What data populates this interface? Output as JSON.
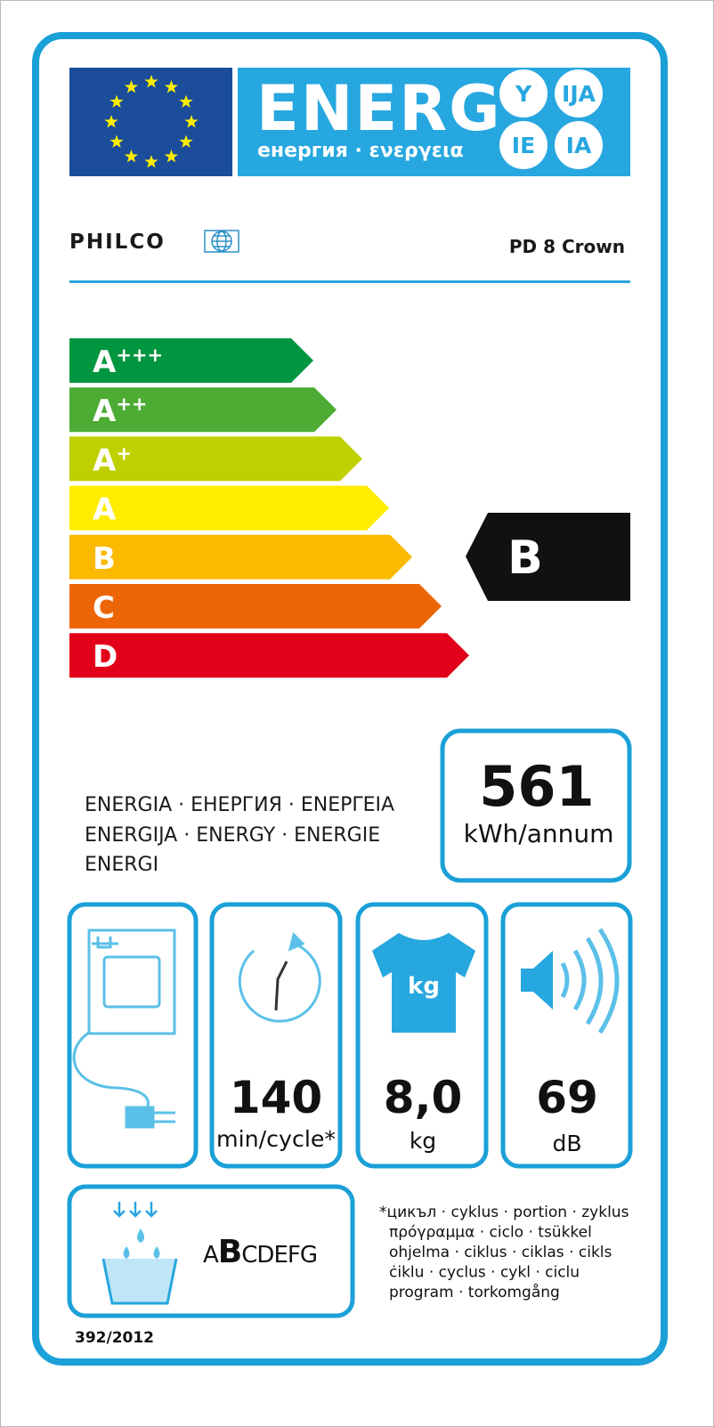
{
  "header": {
    "title": "ENERG",
    "subtitle": "енергия · ενεργεια",
    "suffixes": [
      "Y",
      "IJA",
      "IE",
      "IA"
    ]
  },
  "supplier": "PHILCO",
  "model": "PD 8 Crown",
  "classes": [
    {
      "letter": "A",
      "sup": "+++",
      "color": "#00963f"
    },
    {
      "letter": "A",
      "sup": "++",
      "color": "#4cac33"
    },
    {
      "letter": "A",
      "sup": "+",
      "color": "#bfd000"
    },
    {
      "letter": "A",
      "color": "#ffed00"
    },
    {
      "letter": "B",
      "color": "#fbb900"
    },
    {
      "letter": "C",
      "color": "#ec6608"
    },
    {
      "letter": "D",
      "color": "#e2001a"
    }
  ],
  "rating": "B",
  "energy": {
    "languages": [
      "ENERGIA · ЕНЕРГИЯ · ΕΝΕΡΓΕΙΑ",
      "ENERGIJA · ENERGY · ENERGIE",
      "ENERGI"
    ],
    "value": "561",
    "unit": "kWh/annum"
  },
  "icons": {
    "kg_symbol": "kg",
    "time": {
      "value": "140",
      "unit": "min/cycle*"
    },
    "capacity": {
      "value": "8,0",
      "unit": "kg"
    },
    "noise": {
      "value": "69",
      "unit": "dB"
    }
  },
  "condensation": {
    "classes": [
      "A",
      "B",
      "C",
      "D",
      "E",
      "F",
      "G"
    ],
    "selected": "B"
  },
  "footnote": [
    "*цикъл · cyklus · portion · zyklus",
    "πρόγραμμα · ciclo · tsükkel",
    "ohjelma · ciklus · ciklas · cikls",
    "ċiklu · cyclus · cykl · ciclu",
    "program · torkomgång"
  ],
  "regulation": "392/2012"
}
